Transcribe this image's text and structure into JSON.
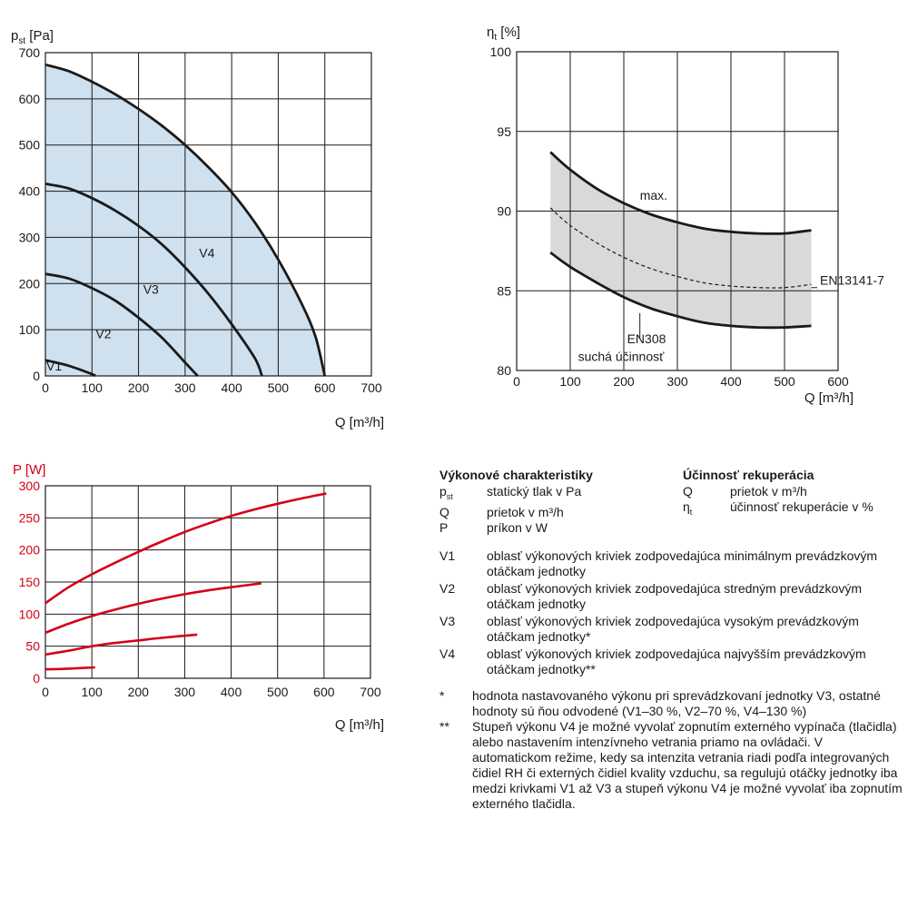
{
  "chart_data": [
    {
      "type": "area",
      "title": "",
      "ylabel_main": "p",
      "ylabel_sub": "st",
      "ylabel_unit": " [Pa]",
      "xlabel": "Q [m³/h]",
      "xlim": [
        0,
        700
      ],
      "ylim": [
        0,
        700
      ],
      "xticks": [
        0,
        100,
        200,
        300,
        400,
        500,
        600,
        700
      ],
      "yticks": [
        0,
        100,
        200,
        300,
        400,
        500,
        600,
        700
      ],
      "grid": true,
      "fill_color": "#cfe0ee",
      "line_color": "#1a1a1a",
      "series": [
        {
          "name": "V1",
          "x": [
            0,
            50,
            100,
            107
          ],
          "y": [
            34,
            22,
            4,
            0
          ],
          "label_x": 2,
          "label_y": 12
        },
        {
          "name": "V2",
          "x": [
            0,
            50,
            100,
            150,
            200,
            250,
            300,
            327
          ],
          "y": [
            221,
            211,
            190,
            163,
            126,
            83,
            29,
            0
          ],
          "label_x": 108,
          "label_y": 82
        },
        {
          "name": "V3",
          "x": [
            0,
            50,
            100,
            150,
            200,
            250,
            300,
            350,
            400,
            450,
            465
          ],
          "y": [
            416,
            406,
            385,
            358,
            325,
            285,
            235,
            178,
            112,
            38,
            0
          ],
          "label_x": 210,
          "label_y": 178
        },
        {
          "name": "V4",
          "x": [
            0,
            50,
            100,
            150,
            200,
            250,
            300,
            350,
            400,
            450,
            500,
            550,
            580,
            600
          ],
          "y": [
            674,
            660,
            637,
            610,
            578,
            542,
            500,
            452,
            398,
            332,
            252,
            157,
            85,
            0
          ],
          "label_x": 330,
          "label_y": 257
        }
      ]
    },
    {
      "type": "line",
      "title": "",
      "ylabel_main": "η",
      "ylabel_sub": "t",
      "ylabel_unit": " [%]",
      "xlabel": "Q [m³/h]",
      "xlim": [
        0,
        600
      ],
      "ylim": [
        80,
        100
      ],
      "xticks": [
        0,
        100,
        200,
        300,
        400,
        500,
        600
      ],
      "yticks": [
        80,
        85,
        90,
        95,
        100
      ],
      "grid": true,
      "band_color": "#d9d9d9",
      "series": [
        {
          "name": "max.",
          "style": "solid",
          "x": [
            63,
            100,
            150,
            200,
            250,
            300,
            350,
            400,
            450,
            500,
            550
          ],
          "y": [
            93.7,
            92.6,
            91.4,
            90.5,
            89.8,
            89.3,
            88.9,
            88.7,
            88.6,
            88.6,
            88.8
          ]
        },
        {
          "name": "EN13141-7",
          "style": "dashed",
          "x": [
            63,
            100,
            150,
            200,
            250,
            300,
            350,
            400,
            450,
            500,
            550
          ],
          "y": [
            90.2,
            89.1,
            88.0,
            87.1,
            86.4,
            85.9,
            85.5,
            85.3,
            85.2,
            85.2,
            85.4
          ]
        },
        {
          "name": "EN308",
          "style": "solid",
          "x": [
            63,
            100,
            150,
            200,
            250,
            300,
            350,
            400,
            450,
            500,
            550
          ],
          "y": [
            87.4,
            86.5,
            85.5,
            84.6,
            83.9,
            83.4,
            83.0,
            82.8,
            82.7,
            82.7,
            82.8
          ]
        }
      ],
      "labels": {
        "max": "max.",
        "en13141": "EN13141-7",
        "en308": "EN308",
        "dry": "suchá účinnosť"
      }
    },
    {
      "type": "line",
      "title": "",
      "ylabel": "P [W]",
      "ylabel_color": "#d4001a",
      "xlabel": "Q [m³/h]",
      "xlim": [
        0,
        700
      ],
      "ylim": [
        0,
        300
      ],
      "xticks": [
        0,
        100,
        200,
        300,
        400,
        500,
        600,
        700
      ],
      "yticks": [
        0,
        50,
        100,
        150,
        200,
        250,
        300
      ],
      "grid": true,
      "line_color": "#d4001a",
      "series": [
        {
          "x": [
            0,
            50,
            107
          ],
          "y": [
            14,
            15,
            17
          ]
        },
        {
          "x": [
            0,
            50,
            100,
            150,
            200,
            250,
            327
          ],
          "y": [
            37,
            43,
            50,
            55,
            59,
            63,
            68
          ]
        },
        {
          "x": [
            0,
            50,
            100,
            150,
            200,
            250,
            300,
            350,
            400,
            465
          ],
          "y": [
            71,
            85,
            97,
            107,
            116,
            124,
            131,
            137,
            142,
            148
          ]
        },
        {
          "x": [
            0,
            50,
            100,
            150,
            200,
            250,
            300,
            350,
            400,
            450,
            500,
            550,
            605
          ],
          "y": [
            117,
            142,
            162,
            180,
            197,
            213,
            228,
            241,
            253,
            263,
            272,
            280,
            288
          ]
        }
      ]
    }
  ],
  "legend": {
    "perf_title": "Výkonové charakteristiky",
    "eff_title": "Účinnosť rekuperácia",
    "perf_rows": [
      {
        "sym_main": "p",
        "sym_sub": "st",
        "desc": "statický tlak v Pa"
      },
      {
        "sym_main": "Q",
        "sym_sub": "",
        "desc": "prietok v m³/h"
      },
      {
        "sym_main": "P",
        "sym_sub": "",
        "desc": "príkon v W"
      }
    ],
    "eff_rows": [
      {
        "sym_main": "Q",
        "sym_sub": "",
        "desc": "prietok v m³/h"
      },
      {
        "sym_main": "η",
        "sym_sub": "t",
        "desc": "účinnosť rekuperácie v %"
      }
    ],
    "v_rows": [
      {
        "sym": "V1",
        "desc": "oblasť výkonových kriviek zodpovedajúca minimálnym prevádzkovým otáčkam jednotky"
      },
      {
        "sym": "V2",
        "desc": "oblasť výkonových kriviek zodpovedajúca stredným prevádzkovým otáčkam jednotky"
      },
      {
        "sym": "V3",
        "desc": "oblasť výkonových kriviek zodpovedajúca vysokým prevádzkovým otáčkam jednotky*"
      },
      {
        "sym": "V4",
        "desc": "oblasť výkonových kriviek zodpovedajúca najvyšším prevádzkovým otáčkam jednotky**"
      }
    ],
    "notes": [
      {
        "sym": "*",
        "desc": "hodnota nastavovaného výkonu pri sprevádzkovaní jednotky V3, ostatné hodnoty sú ňou odvodené (V1–30 %, V2–70 %, V4–130 %)"
      },
      {
        "sym": "**",
        "desc": "Stupeň výkonu V4 je možné vyvolať zopnutím externého vypínača (tlačidla) alebo nastavením intenzívneho vetrania priamo na ovládači. V automatickom režime, kedy sa intenzita vetrania riadi podľa integrovaných čidiel RH či externých čidiel kvality vzduchu, sa regulujú otáčky jednotky iba medzi krivkami V1 až V3 a stupeň výkonu V4 je možné vyvolať iba zopnutím externého tlačidla."
      }
    ]
  }
}
